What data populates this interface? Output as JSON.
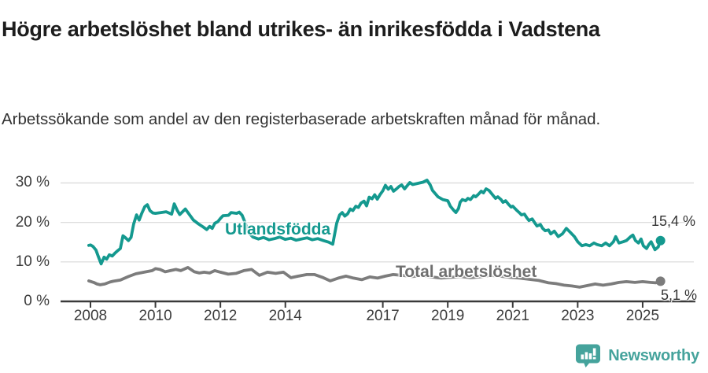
{
  "header": {
    "title": "Högre arbetslöshet bland utrikes- än inrikesfödda i Vadstena",
    "subtitle": "Arbetssökande som andel av den registerbaserade arbetskraften månad för månad."
  },
  "footer": {
    "brand": "Newsworthy"
  },
  "colors": {
    "series_foreign_born": "#14998f",
    "series_total": "#7c7c7c",
    "axis": "#3a3a3a",
    "gridline": "#d8d8d8",
    "brand_teal": "#45a39c"
  },
  "chart_data": {
    "type": "line",
    "title": "Högre arbetslöshet bland utrikes- än inrikesfödda i Vadstena",
    "subtitle": "Arbetssökande som andel av den registerbaserade arbetskraften månad för månad.",
    "unit": "%",
    "grid": true,
    "legend_position": "inline",
    "xlim": [
      2007.75,
      2026.4
    ],
    "ylim": [
      0,
      33
    ],
    "y_ticks": [
      0,
      10,
      20,
      30
    ],
    "y_tick_labels": [
      "0 %",
      "10 %",
      "20 %",
      "30 %"
    ],
    "x_ticks": [
      2008,
      2010,
      2012,
      2014,
      2017,
      2019,
      2021,
      2023,
      2025
    ],
    "x_tick_labels": [
      "2008",
      "2010",
      "2012",
      "2014",
      "2017",
      "2019",
      "2021",
      "2023",
      "2025"
    ],
    "series": [
      {
        "name": "Utlandsfödda",
        "color": "#14998f",
        "end_label": "15,4 %",
        "end_value": 15.4,
        "points": [
          [
            2007.95,
            14.2
          ],
          [
            2008.0,
            14.3
          ],
          [
            2008.08,
            13.9
          ],
          [
            2008.17,
            13.0
          ],
          [
            2008.25,
            11.2
          ],
          [
            2008.33,
            9.5
          ],
          [
            2008.42,
            11.2
          ],
          [
            2008.5,
            10.7
          ],
          [
            2008.58,
            11.8
          ],
          [
            2008.67,
            11.5
          ],
          [
            2008.75,
            12.2
          ],
          [
            2008.83,
            12.8
          ],
          [
            2008.92,
            13.4
          ],
          [
            2009.0,
            16.6
          ],
          [
            2009.08,
            16.1
          ],
          [
            2009.17,
            15.4
          ],
          [
            2009.25,
            16.2
          ],
          [
            2009.33,
            19.6
          ],
          [
            2009.42,
            21.9
          ],
          [
            2009.5,
            20.6
          ],
          [
            2009.58,
            22.3
          ],
          [
            2009.67,
            24.0
          ],
          [
            2009.75,
            24.5
          ],
          [
            2009.83,
            23.0
          ],
          [
            2009.92,
            22.4
          ],
          [
            2010.0,
            22.3
          ],
          [
            2010.17,
            22.5
          ],
          [
            2010.33,
            22.7
          ],
          [
            2010.5,
            22.1
          ],
          [
            2010.58,
            24.7
          ],
          [
            2010.67,
            23.1
          ],
          [
            2010.75,
            22.0
          ],
          [
            2010.92,
            23.4
          ],
          [
            2011.08,
            21.6
          ],
          [
            2011.17,
            20.6
          ],
          [
            2011.33,
            19.6
          ],
          [
            2011.46,
            18.9
          ],
          [
            2011.58,
            18.2
          ],
          [
            2011.67,
            19.0
          ],
          [
            2011.75,
            18.5
          ],
          [
            2011.83,
            19.8
          ],
          [
            2011.92,
            20.2
          ],
          [
            2012.0,
            21.0
          ],
          [
            2012.08,
            21.7
          ],
          [
            2012.25,
            21.8
          ],
          [
            2012.33,
            22.5
          ],
          [
            2012.5,
            22.3
          ],
          [
            2012.58,
            22.6
          ],
          [
            2012.67,
            21.8
          ],
          [
            2012.75,
            20.2
          ],
          [
            2012.83,
            18.3
          ],
          [
            2012.92,
            17.0
          ],
          [
            2013.0,
            16.3
          ],
          [
            2013.17,
            15.8
          ],
          [
            2013.33,
            16.2
          ],
          [
            2013.5,
            15.6
          ],
          [
            2013.67,
            15.9
          ],
          [
            2013.83,
            16.3
          ],
          [
            2014.0,
            15.7
          ],
          [
            2014.17,
            16.0
          ],
          [
            2014.33,
            15.5
          ],
          [
            2014.5,
            15.8
          ],
          [
            2014.67,
            16.1
          ],
          [
            2014.83,
            15.6
          ],
          [
            2015.0,
            15.9
          ],
          [
            2015.17,
            15.4
          ],
          [
            2015.33,
            15.0
          ],
          [
            2015.46,
            14.5
          ],
          [
            2015.58,
            19.8
          ],
          [
            2015.67,
            21.9
          ],
          [
            2015.75,
            22.5
          ],
          [
            2015.83,
            21.6
          ],
          [
            2015.92,
            22.2
          ],
          [
            2016.0,
            23.4
          ],
          [
            2016.08,
            23.0
          ],
          [
            2016.17,
            24.1
          ],
          [
            2016.25,
            23.8
          ],
          [
            2016.33,
            24.9
          ],
          [
            2016.42,
            25.4
          ],
          [
            2016.5,
            24.2
          ],
          [
            2016.58,
            26.4
          ],
          [
            2016.67,
            26.0
          ],
          [
            2016.75,
            27.0
          ],
          [
            2016.83,
            25.9
          ],
          [
            2016.92,
            27.1
          ],
          [
            2017.0,
            28.0
          ],
          [
            2017.08,
            29.4
          ],
          [
            2017.17,
            28.4
          ],
          [
            2017.25,
            29.1
          ],
          [
            2017.33,
            27.9
          ],
          [
            2017.42,
            28.5
          ],
          [
            2017.5,
            29.1
          ],
          [
            2017.58,
            29.5
          ],
          [
            2017.67,
            28.5
          ],
          [
            2017.83,
            30.1
          ],
          [
            2017.92,
            29.6
          ],
          [
            2018.08,
            29.9
          ],
          [
            2018.24,
            30.2
          ],
          [
            2018.36,
            30.7
          ],
          [
            2018.46,
            29.5
          ],
          [
            2018.53,
            28.1
          ],
          [
            2018.7,
            26.5
          ],
          [
            2018.85,
            25.8
          ],
          [
            2019.0,
            25.5
          ],
          [
            2019.08,
            24.1
          ],
          [
            2019.18,
            23.1
          ],
          [
            2019.25,
            22.5
          ],
          [
            2019.33,
            23.5
          ],
          [
            2019.38,
            25.1
          ],
          [
            2019.45,
            25.8
          ],
          [
            2019.55,
            25.5
          ],
          [
            2019.62,
            26.1
          ],
          [
            2019.7,
            25.8
          ],
          [
            2019.8,
            26.8
          ],
          [
            2019.86,
            26.5
          ],
          [
            2019.94,
            27.1
          ],
          [
            2020.03,
            27.9
          ],
          [
            2020.1,
            27.5
          ],
          [
            2020.18,
            28.5
          ],
          [
            2020.27,
            28.1
          ],
          [
            2020.4,
            26.8
          ],
          [
            2020.47,
            26.1
          ],
          [
            2020.54,
            26.5
          ],
          [
            2020.64,
            25.8
          ],
          [
            2020.7,
            25.1
          ],
          [
            2020.78,
            25.5
          ],
          [
            2020.88,
            24.5
          ],
          [
            2020.95,
            23.9
          ],
          [
            2021.0,
            24.1
          ],
          [
            2021.12,
            23.1
          ],
          [
            2021.2,
            22.5
          ],
          [
            2021.27,
            21.9
          ],
          [
            2021.36,
            22.1
          ],
          [
            2021.44,
            21.1
          ],
          [
            2021.5,
            20.5
          ],
          [
            2021.6,
            20.9
          ],
          [
            2021.68,
            19.9
          ],
          [
            2021.75,
            19.1
          ],
          [
            2021.85,
            19.5
          ],
          [
            2021.92,
            18.5
          ],
          [
            2022.0,
            17.9
          ],
          [
            2022.1,
            18.1
          ],
          [
            2022.17,
            17.1
          ],
          [
            2022.28,
            17.8
          ],
          [
            2022.4,
            16.4
          ],
          [
            2022.53,
            17.1
          ],
          [
            2022.65,
            18.5
          ],
          [
            2022.77,
            17.5
          ],
          [
            2022.9,
            16.4
          ],
          [
            2023.0,
            15.1
          ],
          [
            2023.13,
            14.1
          ],
          [
            2023.25,
            14.4
          ],
          [
            2023.37,
            14.1
          ],
          [
            2023.5,
            14.8
          ],
          [
            2023.6,
            14.4
          ],
          [
            2023.74,
            14.1
          ],
          [
            2023.86,
            14.8
          ],
          [
            2023.98,
            14.1
          ],
          [
            2024.1,
            15.1
          ],
          [
            2024.17,
            16.4
          ],
          [
            2024.27,
            14.8
          ],
          [
            2024.4,
            15.1
          ],
          [
            2024.5,
            15.4
          ],
          [
            2024.63,
            16.4
          ],
          [
            2024.7,
            16.8
          ],
          [
            2024.78,
            15.4
          ],
          [
            2024.87,
            14.8
          ],
          [
            2024.95,
            15.8
          ],
          [
            2025.02,
            14.1
          ],
          [
            2025.12,
            13.4
          ],
          [
            2025.19,
            14.4
          ],
          [
            2025.26,
            15.1
          ],
          [
            2025.38,
            13.1
          ],
          [
            2025.48,
            13.8
          ],
          [
            2025.55,
            15.4
          ]
        ]
      },
      {
        "name": "Total arbetslöshet",
        "color": "#7c7c7c",
        "end_label": "5,1 %",
        "end_value": 5.1,
        "points": [
          [
            2007.95,
            5.2
          ],
          [
            2008.1,
            4.8
          ],
          [
            2008.2,
            4.4
          ],
          [
            2008.3,
            4.2
          ],
          [
            2008.44,
            4.4
          ],
          [
            2008.6,
            4.9
          ],
          [
            2008.7,
            5.1
          ],
          [
            2008.92,
            5.4
          ],
          [
            2009.17,
            6.3
          ],
          [
            2009.4,
            7.0
          ],
          [
            2009.65,
            7.4
          ],
          [
            2009.9,
            7.8
          ],
          [
            2010.0,
            8.3
          ],
          [
            2010.14,
            8.1
          ],
          [
            2010.3,
            7.5
          ],
          [
            2010.46,
            7.8
          ],
          [
            2010.63,
            8.1
          ],
          [
            2010.78,
            7.8
          ],
          [
            2011.0,
            8.6
          ],
          [
            2011.2,
            7.5
          ],
          [
            2011.35,
            7.2
          ],
          [
            2011.5,
            7.4
          ],
          [
            2011.67,
            7.2
          ],
          [
            2011.83,
            7.8
          ],
          [
            2012.0,
            7.4
          ],
          [
            2012.24,
            6.9
          ],
          [
            2012.48,
            7.1
          ],
          [
            2012.72,
            7.8
          ],
          [
            2012.96,
            8.1
          ],
          [
            2013.2,
            6.6
          ],
          [
            2013.45,
            7.4
          ],
          [
            2013.7,
            7.1
          ],
          [
            2013.94,
            7.4
          ],
          [
            2014.17,
            6.0
          ],
          [
            2014.4,
            6.4
          ],
          [
            2014.66,
            6.8
          ],
          [
            2014.9,
            6.8
          ],
          [
            2015.14,
            6.1
          ],
          [
            2015.38,
            5.2
          ],
          [
            2015.63,
            5.9
          ],
          [
            2015.87,
            6.4
          ],
          [
            2016.1,
            5.9
          ],
          [
            2016.35,
            5.5
          ],
          [
            2016.6,
            6.2
          ],
          [
            2016.84,
            5.9
          ],
          [
            2017.08,
            6.4
          ],
          [
            2017.32,
            6.8
          ],
          [
            2017.6,
            6.6
          ],
          [
            2017.9,
            6.3
          ],
          [
            2018.2,
            6.5
          ],
          [
            2018.5,
            6.2
          ],
          [
            2018.8,
            5.9
          ],
          [
            2019.1,
            6.1
          ],
          [
            2019.4,
            6.3
          ],
          [
            2019.7,
            6.0
          ],
          [
            2020.0,
            6.2
          ],
          [
            2020.3,
            6.6
          ],
          [
            2020.6,
            6.4
          ],
          [
            2020.9,
            6.1
          ],
          [
            2021.2,
            5.9
          ],
          [
            2021.5,
            5.6
          ],
          [
            2021.8,
            5.3
          ],
          [
            2022.1,
            4.7
          ],
          [
            2022.33,
            4.5
          ],
          [
            2022.58,
            4.1
          ],
          [
            2022.82,
            3.9
          ],
          [
            2023.06,
            3.6
          ],
          [
            2023.3,
            4.0
          ],
          [
            2023.54,
            4.4
          ],
          [
            2023.78,
            4.1
          ],
          [
            2024.03,
            4.4
          ],
          [
            2024.27,
            4.8
          ],
          [
            2024.5,
            5.0
          ],
          [
            2024.76,
            4.8
          ],
          [
            2025.0,
            5.0
          ],
          [
            2025.24,
            4.8
          ],
          [
            2025.4,
            4.7
          ],
          [
            2025.55,
            5.1
          ]
        ]
      }
    ]
  }
}
